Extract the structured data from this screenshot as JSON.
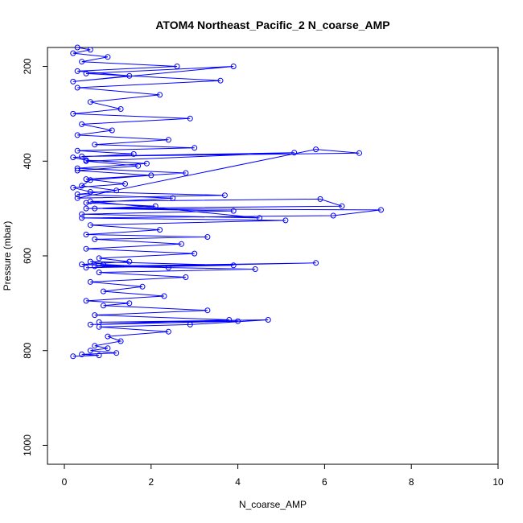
{
  "chart_data": {
    "type": "scatter",
    "title": "ATOM4 Northeast_Pacific_2 N_coarse_AMP",
    "xlabel": "N_coarse_AMP",
    "ylabel": "Pressure (mbar)",
    "xlim": [
      0,
      10
    ],
    "ylim": [
      1040,
      160
    ],
    "y_reversed": true,
    "x_ticks": [
      0,
      2,
      4,
      6,
      8,
      10
    ],
    "y_ticks": [
      200,
      400,
      600,
      800,
      1000
    ],
    "x_tick_labels": [
      "0",
      "2",
      "4",
      "6",
      "8",
      "10"
    ],
    "y_tick_labels": [
      "200",
      "400",
      "600",
      "800",
      "1000"
    ],
    "marker": "open-circle",
    "connected": true,
    "grid": false,
    "series_color": "#0000ff",
    "series": [
      {
        "x": [
          0.3,
          0.6,
          0.2,
          1.0,
          0.4,
          2.6,
          0.3,
          1.5,
          0.2,
          3.9,
          0.5,
          3.6,
          0.3,
          2.2,
          0.6,
          1.3,
          0.2,
          2.9,
          0.4,
          1.1,
          0.3,
          2.4,
          0.7,
          3.0,
          0.3,
          1.6,
          0.2,
          0.5,
          1.9,
          0.3,
          2.8,
          0.5,
          1.4,
          0.2,
          0.6,
          3.7,
          0.3,
          5.8,
          6.8,
          0.4,
          5.3,
          0.5,
          1.7,
          0.3,
          2.0,
          0.6,
          0.4,
          1.2,
          0.3,
          2.5,
          0.5,
          2.1,
          0.7,
          3.9,
          0.4,
          4.5,
          0.6,
          5.9,
          6.4,
          0.5,
          7.3,
          6.2,
          0.4,
          5.1,
          0.6,
          2.2,
          0.5,
          3.3,
          0.7,
          2.7,
          0.5,
          3.0,
          0.8,
          1.5,
          0.4,
          2.4,
          0.9,
          0.6,
          3.9,
          0.5,
          5.8,
          0.7,
          4.4,
          0.8,
          2.8,
          0.6,
          1.8,
          0.9,
          2.3,
          0.5,
          1.5,
          0.9,
          3.3,
          0.7,
          3.8,
          0.6,
          4.0,
          0.8,
          4.7,
          2.9,
          0.8,
          2.4,
          1.0,
          1.3,
          0.7,
          1.0,
          0.6,
          1.2,
          0.4,
          0.8,
          0.2
        ],
        "y": [
          160,
          165,
          172,
          180,
          190,
          200,
          210,
          220,
          232,
          200,
          215,
          230,
          245,
          260,
          275,
          290,
          300,
          310,
          322,
          335,
          345,
          355,
          365,
          372,
          378,
          385,
          392,
          398,
          405,
          415,
          425,
          438,
          448,
          456,
          465,
          472,
          478,
          375,
          383,
          390,
          382,
          400,
          410,
          420,
          430,
          440,
          452,
          462,
          470,
          478,
          488,
          495,
          500,
          505,
          512,
          520,
          485,
          480,
          495,
          500,
          503,
          515,
          520,
          525,
          535,
          545,
          555,
          560,
          565,
          575,
          585,
          595,
          605,
          612,
          618,
          625,
          618,
          612,
          620,
          625,
          615,
          622,
          628,
          635,
          645,
          655,
          665,
          675,
          685,
          695,
          700,
          705,
          715,
          725,
          735,
          745,
          738,
          740,
          735,
          745,
          750,
          760,
          770,
          780,
          790,
          795,
          800,
          805,
          808,
          810,
          812
        ]
      }
    ]
  }
}
